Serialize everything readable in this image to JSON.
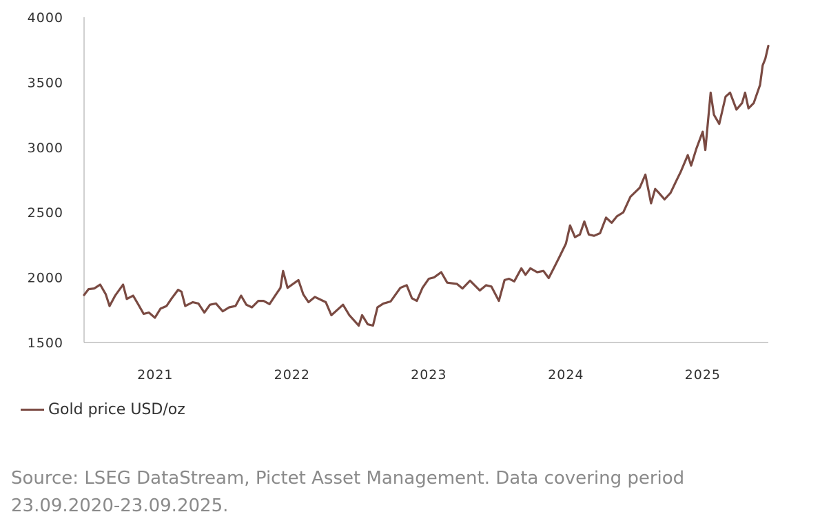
{
  "chart_data": {
    "type": "line",
    "title": "",
    "xlabel": "",
    "ylabel": "",
    "ylim": [
      1500,
      4000
    ],
    "yticks": [
      "1500",
      "2000",
      "2500",
      "3000",
      "3500",
      "4000"
    ],
    "xlim": [
      "2020-09-23",
      "2025-09-23"
    ],
    "xticks": [
      "2021",
      "2022",
      "2023",
      "2024",
      "2025"
    ],
    "grid": false,
    "legend_position": "bottom-left",
    "series": [
      {
        "name": "Gold price USD/oz",
        "color": "#7a4a42",
        "points": [
          [
            "2020-09-23",
            1865
          ],
          [
            "2020-10-05",
            1910
          ],
          [
            "2020-10-20",
            1915
          ],
          [
            "2020-11-05",
            1945
          ],
          [
            "2020-11-20",
            1870
          ],
          [
            "2020-11-30",
            1780
          ],
          [
            "2020-12-15",
            1860
          ],
          [
            "2021-01-05",
            1945
          ],
          [
            "2021-01-15",
            1835
          ],
          [
            "2021-02-01",
            1860
          ],
          [
            "2021-02-15",
            1790
          ],
          [
            "2021-03-01",
            1720
          ],
          [
            "2021-03-15",
            1730
          ],
          [
            "2021-03-31",
            1690
          ],
          [
            "2021-04-15",
            1760
          ],
          [
            "2021-05-01",
            1780
          ],
          [
            "2021-05-15",
            1840
          ],
          [
            "2021-06-01",
            1905
          ],
          [
            "2021-06-10",
            1890
          ],
          [
            "2021-06-20",
            1780
          ],
          [
            "2021-07-10",
            1810
          ],
          [
            "2021-07-25",
            1800
          ],
          [
            "2021-08-10",
            1730
          ],
          [
            "2021-08-25",
            1790
          ],
          [
            "2021-09-10",
            1800
          ],
          [
            "2021-09-28",
            1740
          ],
          [
            "2021-10-15",
            1770
          ],
          [
            "2021-11-01",
            1780
          ],
          [
            "2021-11-16",
            1860
          ],
          [
            "2021-11-30",
            1790
          ],
          [
            "2021-12-15",
            1770
          ],
          [
            "2022-01-01",
            1820
          ],
          [
            "2022-01-15",
            1820
          ],
          [
            "2022-01-31",
            1795
          ],
          [
            "2022-02-15",
            1860
          ],
          [
            "2022-03-01",
            1920
          ],
          [
            "2022-03-08",
            2050
          ],
          [
            "2022-03-20",
            1920
          ],
          [
            "2022-04-18",
            1980
          ],
          [
            "2022-05-01",
            1870
          ],
          [
            "2022-05-15",
            1810
          ],
          [
            "2022-06-01",
            1850
          ],
          [
            "2022-06-30",
            1810
          ],
          [
            "2022-07-15",
            1710
          ],
          [
            "2022-08-15",
            1790
          ],
          [
            "2022-09-01",
            1710
          ],
          [
            "2022-09-26",
            1630
          ],
          [
            "2022-10-05",
            1710
          ],
          [
            "2022-10-20",
            1640
          ],
          [
            "2022-11-03",
            1630
          ],
          [
            "2022-11-15",
            1770
          ],
          [
            "2022-12-01",
            1800
          ],
          [
            "2022-12-20",
            1815
          ],
          [
            "2023-01-15",
            1920
          ],
          [
            "2023-02-01",
            1940
          ],
          [
            "2023-02-15",
            1840
          ],
          [
            "2023-02-28",
            1820
          ],
          [
            "2023-03-15",
            1920
          ],
          [
            "2023-04-01",
            1990
          ],
          [
            "2023-04-15",
            2000
          ],
          [
            "2023-05-04",
            2040
          ],
          [
            "2023-05-20",
            1960
          ],
          [
            "2023-06-15",
            1950
          ],
          [
            "2023-06-30",
            1915
          ],
          [
            "2023-07-20",
            1975
          ],
          [
            "2023-08-15",
            1900
          ],
          [
            "2023-09-01",
            1940
          ],
          [
            "2023-09-15",
            1930
          ],
          [
            "2023-10-05",
            1820
          ],
          [
            "2023-10-20",
            1980
          ],
          [
            "2023-11-01",
            1990
          ],
          [
            "2023-11-15",
            1970
          ],
          [
            "2023-12-04",
            2070
          ],
          [
            "2023-12-15",
            2020
          ],
          [
            "2023-12-28",
            2070
          ],
          [
            "2024-01-15",
            2040
          ],
          [
            "2024-02-01",
            2050
          ],
          [
            "2024-02-15",
            1995
          ],
          [
            "2024-03-01",
            2080
          ],
          [
            "2024-03-15",
            2160
          ],
          [
            "2024-04-01",
            2260
          ],
          [
            "2024-04-12",
            2400
          ],
          [
            "2024-04-25",
            2310
          ],
          [
            "2024-05-08",
            2330
          ],
          [
            "2024-05-20",
            2430
          ],
          [
            "2024-06-01",
            2330
          ],
          [
            "2024-06-15",
            2320
          ],
          [
            "2024-07-01",
            2340
          ],
          [
            "2024-07-17",
            2460
          ],
          [
            "2024-08-01",
            2420
          ],
          [
            "2024-08-15",
            2470
          ],
          [
            "2024-09-01",
            2500
          ],
          [
            "2024-09-20",
            2620
          ],
          [
            "2024-10-15",
            2690
          ],
          [
            "2024-10-30",
            2790
          ],
          [
            "2024-11-14",
            2570
          ],
          [
            "2024-11-25",
            2680
          ],
          [
            "2024-12-05",
            2650
          ],
          [
            "2024-12-20",
            2600
          ],
          [
            "2025-01-05",
            2650
          ],
          [
            "2025-01-20",
            2740
          ],
          [
            "2025-02-01",
            2810
          ],
          [
            "2025-02-20",
            2940
          ],
          [
            "2025-03-01",
            2860
          ],
          [
            "2025-03-15",
            2990
          ],
          [
            "2025-04-01",
            3120
          ],
          [
            "2025-04-08",
            2980
          ],
          [
            "2025-04-22",
            3420
          ],
          [
            "2025-05-01",
            3250
          ],
          [
            "2025-05-15",
            3180
          ],
          [
            "2025-06-01",
            3390
          ],
          [
            "2025-06-13",
            3420
          ],
          [
            "2025-06-30",
            3290
          ],
          [
            "2025-07-15",
            3340
          ],
          [
            "2025-07-23",
            3420
          ],
          [
            "2025-08-01",
            3300
          ],
          [
            "2025-08-15",
            3340
          ],
          [
            "2025-09-01",
            3480
          ],
          [
            "2025-09-08",
            3630
          ],
          [
            "2025-09-15",
            3680
          ],
          [
            "2025-09-23",
            3780
          ]
        ]
      }
    ]
  },
  "legend": {
    "label": "Gold price USD/oz"
  },
  "source_note": {
    "line1": "Source: LSEG DataStream, Pictet Asset Management. Data covering period",
    "line2": "23.09.2020-23.09.2025."
  }
}
